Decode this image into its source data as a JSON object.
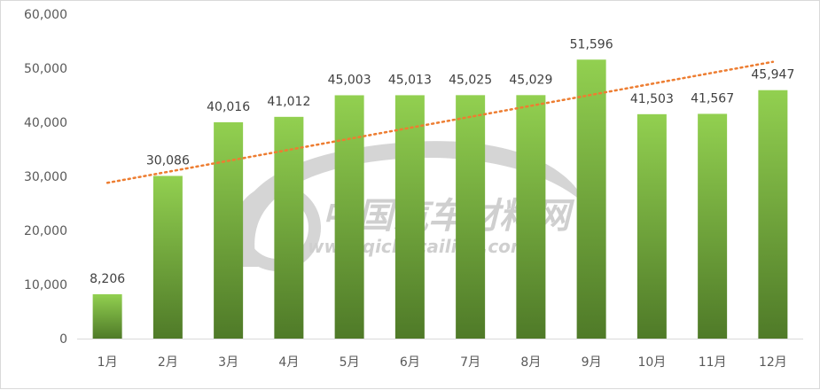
{
  "chart_data": {
    "type": "bar",
    "categories": [
      "1月",
      "2月",
      "3月",
      "4月",
      "5月",
      "6月",
      "7月",
      "8月",
      "9月",
      "10月",
      "11月",
      "12月"
    ],
    "values": [
      8206,
      30086,
      40016,
      41012,
      45003,
      45013,
      45025,
      45029,
      51596,
      41503,
      41567,
      45947
    ],
    "data_labels": [
      "8,206",
      "30,086",
      "40,016",
      "41,012",
      "45,003",
      "45,013",
      "45,025",
      "45,029",
      "51,596",
      "41,503",
      "41,567",
      "45,947"
    ],
    "y_ticks": [
      "0",
      "10,000",
      "20,000",
      "30,000",
      "40,000",
      "50,000",
      "60,000"
    ],
    "ylim": [
      0,
      60000
    ],
    "trendline": {
      "type": "linear",
      "style": "dotted",
      "color": "#ED7D31"
    },
    "bar_color_top": "#92D050",
    "bar_color_bottom": "#4F7A28",
    "grid": false,
    "legend": "none",
    "title": "",
    "xlabel": "",
    "ylabel": ""
  },
  "watermark": {
    "text": "中国汽车材料网",
    "url": "www.qichecailiao.com"
  }
}
